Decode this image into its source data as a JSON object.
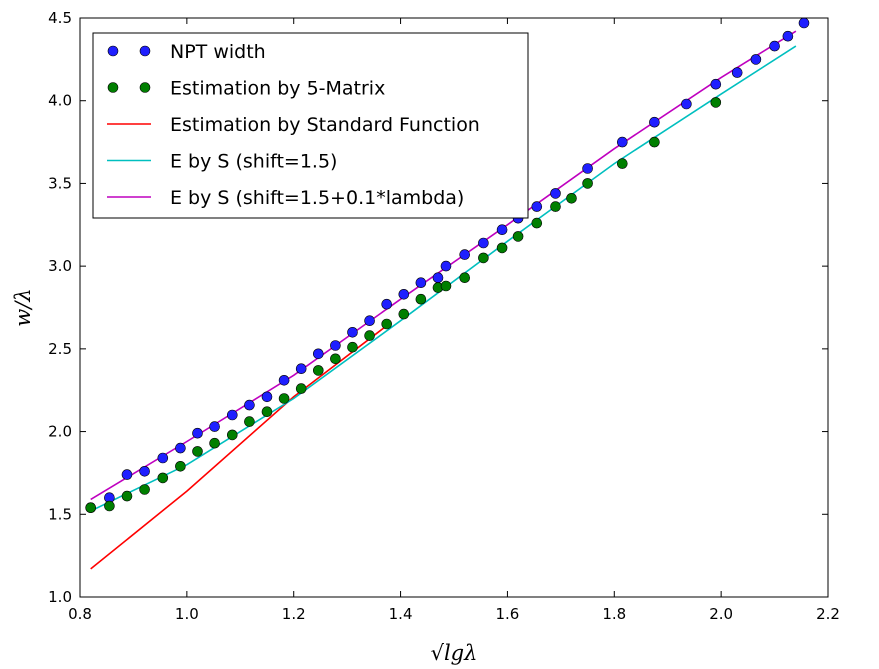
{
  "chart_data": {
    "type": "scatter",
    "xlabel": "√lgλ",
    "ylabel": "w/λ",
    "xlim": [
      0.8,
      2.2
    ],
    "ylim": [
      1.0,
      4.5
    ],
    "xticks": [
      "0.8",
      "1.0",
      "1.2",
      "1.4",
      "1.6",
      "1.8",
      "2.0",
      "2.2"
    ],
    "yticks": [
      "1.0",
      "1.5",
      "2.0",
      "2.5",
      "3.0",
      "3.5",
      "4.0",
      "4.5"
    ],
    "grid": false,
    "legend_position": "top-left",
    "series": [
      {
        "name": "NPT width",
        "kind": "scatter",
        "color": "#1f1fff",
        "x": [
          0.82,
          0.855,
          0.888,
          0.921,
          0.955,
          0.988,
          1.02,
          1.052,
          1.085,
          1.117,
          1.15,
          1.182,
          1.214,
          1.246,
          1.278,
          1.31,
          1.342,
          1.374,
          1.406,
          1.438,
          1.47,
          1.485,
          1.52,
          1.555,
          1.59,
          1.62,
          1.655,
          1.69,
          1.75,
          1.815,
          1.875,
          1.935,
          1.99,
          2.03,
          2.065,
          2.1,
          2.125,
          2.155
        ],
        "y": [
          1.54,
          1.6,
          1.74,
          1.76,
          1.84,
          1.9,
          1.99,
          2.03,
          2.1,
          2.16,
          2.21,
          2.31,
          2.38,
          2.47,
          2.52,
          2.6,
          2.67,
          2.77,
          2.83,
          2.9,
          2.93,
          3.0,
          3.07,
          3.14,
          3.22,
          3.29,
          3.36,
          3.44,
          3.59,
          3.75,
          3.87,
          3.98,
          4.1,
          4.17,
          4.25,
          4.33,
          4.39,
          4.47
        ]
      },
      {
        "name": "Estimation by 5-Matrix",
        "kind": "scatter",
        "color": "#007f00",
        "x": [
          0.82,
          0.855,
          0.888,
          0.921,
          0.955,
          0.988,
          1.02,
          1.052,
          1.085,
          1.117,
          1.15,
          1.182,
          1.214,
          1.246,
          1.278,
          1.31,
          1.342,
          1.374,
          1.406,
          1.438,
          1.47,
          1.485,
          1.52,
          1.555,
          1.59,
          1.62,
          1.655,
          1.69,
          1.72,
          1.75,
          1.815,
          1.875,
          1.99
        ],
        "y": [
          1.54,
          1.55,
          1.61,
          1.65,
          1.72,
          1.79,
          1.88,
          1.93,
          1.98,
          2.06,
          2.12,
          2.2,
          2.26,
          2.37,
          2.44,
          2.51,
          2.58,
          2.65,
          2.71,
          2.8,
          2.87,
          2.88,
          2.93,
          3.05,
          3.11,
          3.18,
          3.26,
          3.36,
          3.41,
          3.5,
          3.62,
          3.75,
          3.99
        ]
      },
      {
        "name": "Estimation by Standard Function",
        "kind": "line",
        "color": "#ff0000",
        "x": [
          0.82,
          1.0,
          1.2,
          1.37
        ],
        "y": [
          1.17,
          1.64,
          2.21,
          2.63
        ]
      },
      {
        "name": "E by S (shift=1.5)",
        "kind": "line",
        "color": "#00bfbf",
        "x": [
          0.82,
          1.0,
          1.2,
          1.4,
          1.6,
          1.8,
          2.0,
          2.14
        ],
        "y": [
          1.52,
          1.8,
          2.2,
          2.67,
          3.15,
          3.62,
          4.04,
          4.33
        ]
      },
      {
        "name": "E by S (shift=1.5+0.1*lambda)",
        "kind": "line",
        "color": "#bf00bf",
        "x": [
          0.82,
          1.0,
          1.2,
          1.4,
          1.6,
          1.8,
          2.0,
          2.14
        ],
        "y": [
          1.59,
          1.94,
          2.34,
          2.8,
          3.25,
          3.71,
          4.14,
          4.42
        ]
      }
    ]
  }
}
